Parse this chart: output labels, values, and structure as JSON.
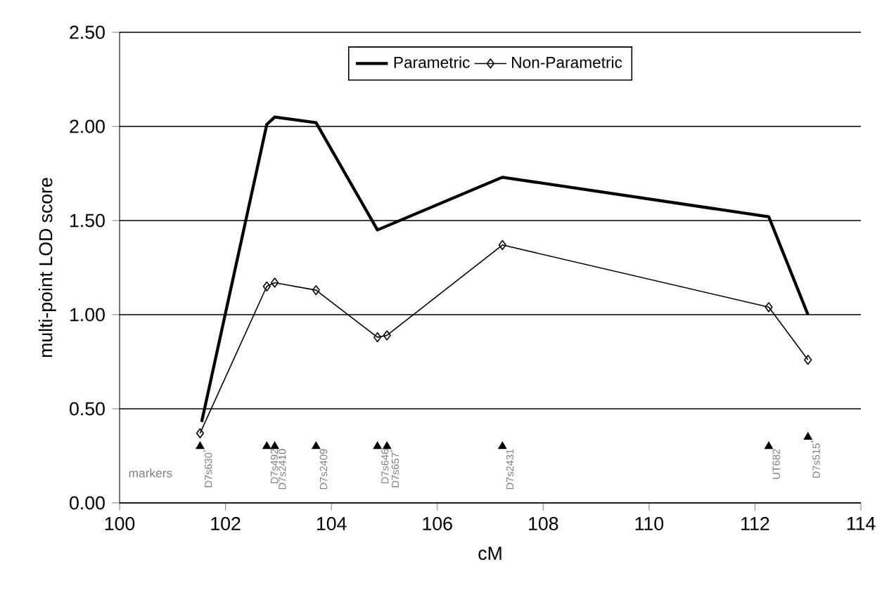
{
  "chart_data": {
    "type": "line",
    "xlabel": "cM",
    "ylabel": "multi-point LOD score",
    "xlim": [
      100,
      114
    ],
    "xticks": [
      100,
      102,
      104,
      106,
      108,
      110,
      112,
      114
    ],
    "ylim": [
      0,
      2.5
    ],
    "yticks": [
      {
        "value": 0,
        "label": "0.00"
      },
      {
        "value": 0.5,
        "label": "0.50"
      },
      {
        "value": 1,
        "label": "1.00"
      },
      {
        "value": 1.5,
        "label": "1.50"
      },
      {
        "value": 2,
        "label": "2.00"
      },
      {
        "value": 2.5,
        "label": "2.50"
      }
    ],
    "grid": "y",
    "legend": "top",
    "series": [
      {
        "name": "Parametric",
        "color": "#000000",
        "marker": "none",
        "x": [
          101.55,
          102.78,
          102.93,
          103.71,
          104.87,
          107.23,
          112.26,
          113.0
        ],
        "values": [
          0.43,
          2.01,
          2.05,
          2.02,
          1.45,
          1.73,
          1.52,
          1.0
        ]
      },
      {
        "name": "Non-Parametric",
        "color": "#000000",
        "marker": "diamond",
        "x": [
          101.52,
          102.78,
          102.93,
          103.71,
          104.87,
          105.05,
          107.23,
          112.26,
          113.0
        ],
        "values": [
          0.37,
          1.15,
          1.17,
          1.13,
          0.88,
          0.89,
          1.37,
          1.04,
          0.76
        ]
      },
      {
        "type": "scatter",
        "color": "#000000",
        "marker": "triangle",
        "x": [
          101.52,
          102.78,
          102.93,
          103.71,
          104.87,
          105.05,
          107.23,
          112.26,
          113.0
        ],
        "values": [
          0.3,
          0.3,
          0.3,
          0.3,
          0.3,
          0.3,
          0.3,
          0.3,
          0.35
        ]
      }
    ],
    "annotations": [
      "markers",
      {
        "text": "D7s630$^{*}$",
        "x": 101.52,
        "y": 0.3
      },
      {
        "text": "D7s492",
        "x": 102.78,
        "y": 0.3
      },
      {
        "text": "D7s2410",
        "x": 102.93,
        "y": 0.3
      },
      {
        "text": "D7s2409",
        "x": 103.71,
        "y": 0.3
      },
      {
        "text": "D7s646",
        "x": 104.87,
        "y": 0.3
      },
      {
        "text": "D7s657$^{*}$",
        "x": 105.05,
        "y": 0.3
      },
      {
        "text": "D7s2431",
        "x": 107.23,
        "y": 0.3
      },
      {
        "text": "UT682",
        "x": 112.26,
        "y": 0.3
      },
      {
        "text": "D7s515$^{*}$",
        "x": 113.0,
        "y": 0.35
      }
    ]
  }
}
